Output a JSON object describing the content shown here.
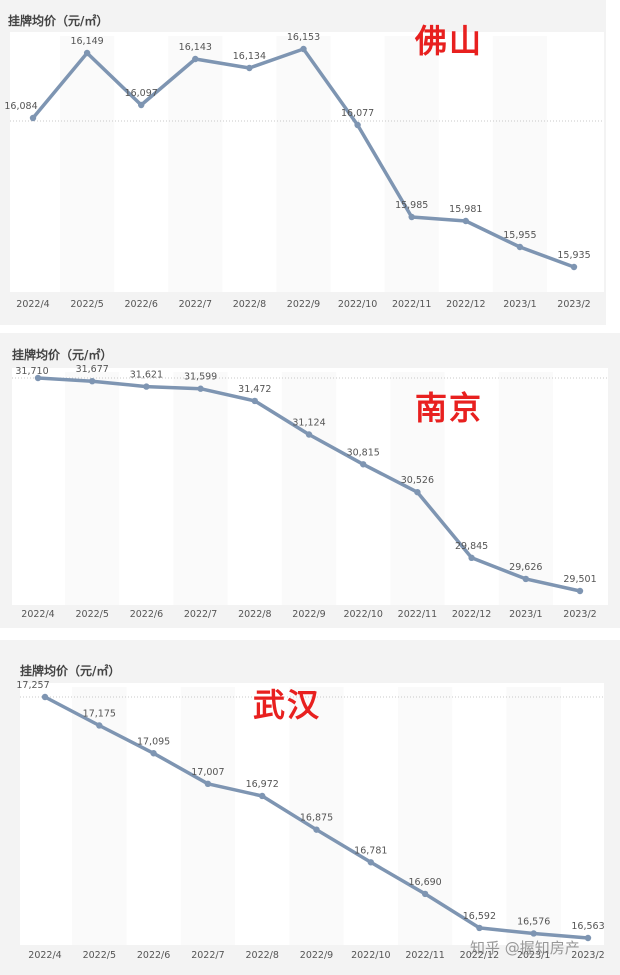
{
  "watermark": {
    "text": "知乎 @握知房产",
    "icon": "at-sign-icon"
  },
  "colors": {
    "line": "#7e95b2",
    "city": "#e8201f",
    "label": "#555555",
    "tick": "#555555",
    "plot_bg": "#ffffff",
    "panel_bg": "#f3f3f3"
  },
  "chart_data": [
    {
      "type": "line",
      "title": "佛山",
      "ylabel": "挂牌均价（元/㎡）",
      "xlabel": "",
      "categories": [
        "2022/4",
        "2022/5",
        "2022/6",
        "2022/7",
        "2022/8",
        "2022/9",
        "2022/10",
        "2022/11",
        "2022/12",
        "2023/1",
        "2023/2"
      ],
      "values": [
        16084,
        16149,
        16097,
        16143,
        16134,
        16153,
        16077,
        15985,
        15981,
        15955,
        15935
      ],
      "data_labels": [
        "16,084",
        "16,149",
        "16,097",
        "16,143",
        "16,134",
        "16,153",
        "16,077",
        "15,985",
        "15,981",
        "15,955",
        "15,935"
      ],
      "grid": "off",
      "reference_line": "dotted"
    },
    {
      "type": "line",
      "title": "南京",
      "ylabel": "挂牌均价（元/㎡）",
      "xlabel": "",
      "categories": [
        "2022/4",
        "2022/5",
        "2022/6",
        "2022/7",
        "2022/8",
        "2022/9",
        "2022/10",
        "2022/11",
        "2022/12",
        "2023/1",
        "2023/2"
      ],
      "values": [
        31710,
        31677,
        31621,
        31599,
        31472,
        31124,
        30815,
        30526,
        29845,
        29626,
        29501
      ],
      "data_labels": [
        "31,710",
        "31,677",
        "31,621",
        "31,599",
        "31,472",
        "31,124",
        "30,815",
        "30,526",
        "29,845",
        "29,626",
        "29,501"
      ],
      "grid": "off",
      "reference_line": "dotted"
    },
    {
      "type": "line",
      "title": "武汉",
      "ylabel": "挂牌均价（元/㎡）",
      "xlabel": "",
      "categories": [
        "2022/4",
        "2022/5",
        "2022/6",
        "2022/7",
        "2022/8",
        "2022/9",
        "2022/10",
        "2022/11",
        "2022/12",
        "2023/1",
        "2023/2"
      ],
      "values": [
        17257,
        17175,
        17095,
        17007,
        16972,
        16875,
        16781,
        16690,
        16592,
        16576,
        16563
      ],
      "data_labels": [
        "17,257",
        "17,175",
        "17,095",
        "17,007",
        "16,972",
        "16,875",
        "16,781",
        "16,690",
        "16,592",
        "16,576",
        "16,563"
      ],
      "grid": "off",
      "reference_line": "dotted"
    }
  ]
}
